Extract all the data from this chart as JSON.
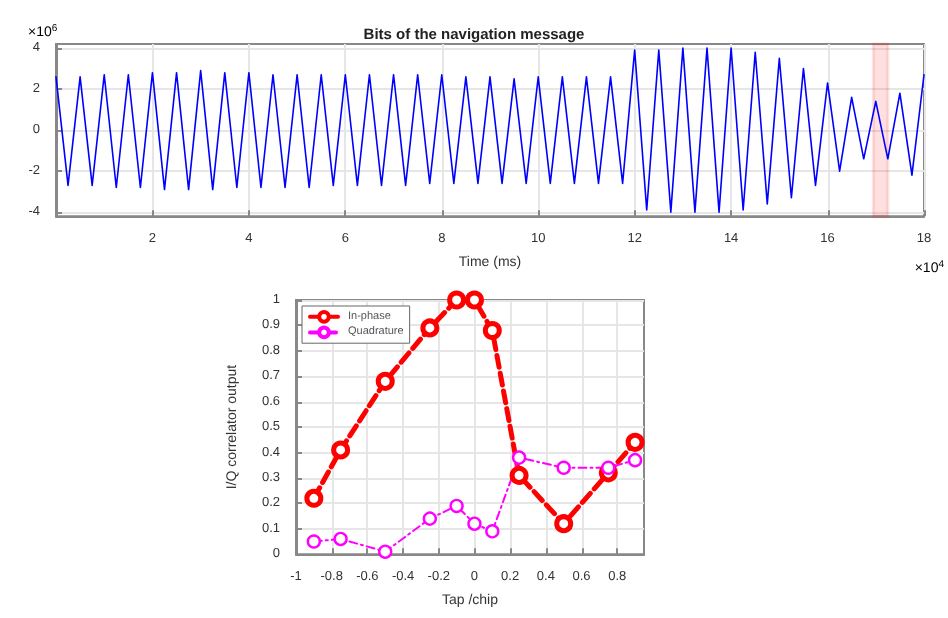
{
  "chart_data": [
    {
      "type": "line",
      "title": "Bits of the navigation message",
      "xlabel": "Time (ms)",
      "annotations": [
        "×10$^{6}$",
        "×10$^{4}$"
      ],
      "grid": true,
      "legend": false,
      "marker": "none",
      "line_style": "solid",
      "xlim": [
        0,
        18
      ],
      "xticks": [
        2,
        4,
        6,
        8,
        10,
        12,
        14,
        16,
        18
      ],
      "ylim": [
        -4.2,
        4.2
      ],
      "yticks": [
        -4,
        -2,
        0,
        2,
        4
      ],
      "bands": [
        {
          "axis": "x",
          "from": 16.95,
          "to": 17.25,
          "color": "#ff0000"
        }
      ],
      "x": [
        0,
        0.25,
        0.5,
        0.75,
        1,
        1.25,
        1.5,
        1.75,
        2,
        2.25,
        2.5,
        2.75,
        3,
        3.25,
        3.5,
        3.75,
        4,
        4.25,
        4.5,
        4.75,
        5,
        5.25,
        5.5,
        5.75,
        6,
        6.25,
        6.5,
        6.75,
        7,
        7.25,
        7.5,
        7.75,
        8,
        8.25,
        8.5,
        8.75,
        9,
        9.25,
        9.5,
        9.75,
        10,
        10.25,
        10.5,
        10.75,
        11,
        11.25,
        11.5,
        11.75,
        12,
        12.25,
        12.5,
        12.75,
        13,
        13.25,
        13.5,
        13.75,
        14,
        14.25,
        14.5,
        14.75,
        15,
        15.25,
        15.5,
        15.75,
        16,
        16.25,
        16.5,
        16.75,
        17,
        17.25,
        17.5,
        17.75,
        18
      ],
      "series": [
        {
          "color": "#0000ff",
          "values": [
            2.6,
            -2.7,
            2.6,
            -2.7,
            2.7,
            -2.8,
            2.7,
            -2.8,
            2.8,
            -2.9,
            2.8,
            -2.9,
            2.9,
            -2.9,
            2.8,
            -2.8,
            2.8,
            -2.8,
            2.7,
            -2.8,
            2.7,
            -2.8,
            2.7,
            -2.7,
            2.7,
            -2.7,
            2.7,
            -2.7,
            2.7,
            -2.7,
            2.7,
            -2.6,
            2.7,
            -2.6,
            2.6,
            -2.6,
            2.6,
            -2.6,
            2.5,
            -2.6,
            2.6,
            -2.6,
            2.6,
            -2.6,
            2.6,
            -2.6,
            2.6,
            -2.6,
            3.9,
            -3.9,
            3.9,
            -4.0,
            4.0,
            -4.0,
            4.0,
            -4.0,
            4.0,
            -3.9,
            3.8,
            -3.6,
            3.5,
            -3.3,
            3.0,
            -2.7,
            2.3,
            -2.0,
            1.6,
            -1.4,
            1.4,
            -1.4,
            1.8,
            -2.2,
            2.7
          ]
        }
      ]
    },
    {
      "type": "line",
      "xlabel": "Tap /chip",
      "ylabel": "I/Q correlator output",
      "grid": true,
      "legend": "top left",
      "marker": "circle",
      "xlim": [
        -1,
        0.95
      ],
      "xticks": [
        -1,
        -0.8,
        -0.6,
        -0.4,
        -0.2,
        0,
        0.2,
        0.4,
        0.6,
        0.8
      ],
      "ylim": [
        0,
        1
      ],
      "yticks": [
        0,
        0.1,
        0.2,
        0.3,
        0.4,
        0.5,
        0.6,
        0.7,
        0.8,
        0.9,
        1
      ],
      "x": [
        -0.9,
        -0.75,
        -0.5,
        -0.25,
        -0.1,
        0,
        0.1,
        0.25,
        0.5,
        0.75,
        0.9
      ],
      "series": [
        {
          "name": "In-phase",
          "color": "#ff0000",
          "line_style": "dashed",
          "values": [
            0.22,
            0.41,
            0.68,
            0.89,
            1.0,
            1.0,
            0.88,
            0.31,
            0.12,
            0.32,
            0.44
          ]
        },
        {
          "name": "Quadrature",
          "color": "#ff00ff",
          "line_style": "dotted",
          "values": [
            0.05,
            0.06,
            0.01,
            0.14,
            0.19,
            0.12,
            0.09,
            0.38,
            0.34,
            0.34,
            0.37
          ]
        }
      ]
    }
  ]
}
